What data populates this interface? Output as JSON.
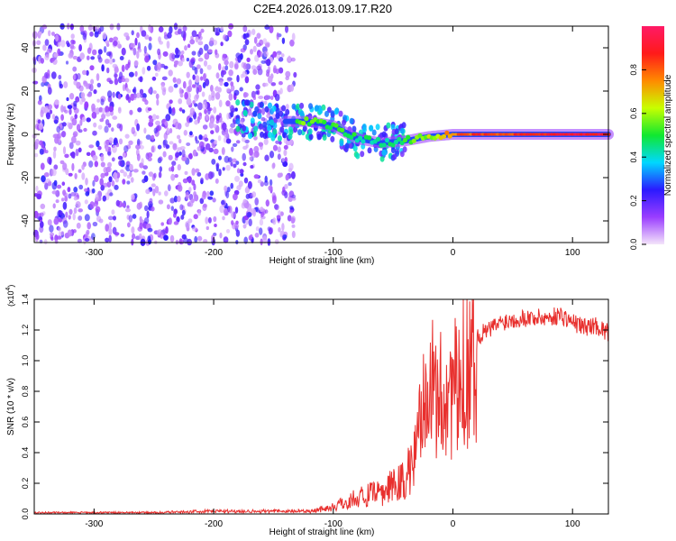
{
  "title": "C2E4.2026.013.09.17.R20",
  "chart_data": [
    {
      "type": "heatmap",
      "title": "",
      "xlabel": "Height of straight line (km)",
      "ylabel": "Frequency (Hz)",
      "xlim": [
        -350,
        130
      ],
      "ylim": [
        -50,
        50
      ],
      "xticks": [
        -300,
        -200,
        -100,
        0,
        100
      ],
      "yticks": [
        -40,
        -20,
        0,
        20,
        40
      ],
      "colorbar": {
        "label": "Normalized spectral amplitude",
        "range": [
          0,
          1
        ],
        "ticks": [
          0.0,
          0.2,
          0.4,
          0.6,
          0.8
        ],
        "colors": [
          "#f4e4fa",
          "#9a3dff",
          "#2b1aff",
          "#00d8ff",
          "#10e830",
          "#c8ff00",
          "#ff8a00",
          "#ff1a1a",
          "#ff1a66"
        ]
      },
      "ridge": {
        "x": [
          -180,
          -150,
          -120,
          -100,
          -80,
          -60,
          -40,
          -20,
          0,
          20,
          60,
          100,
          130
        ],
        "frequency": [
          8,
          6,
          6,
          4,
          -2,
          -4,
          -3,
          -1,
          0,
          0,
          0,
          0,
          0
        ],
        "amplitude": [
          0.35,
          0.45,
          0.55,
          0.5,
          0.45,
          0.45,
          0.5,
          0.6,
          0.75,
          0.85,
          0.85,
          0.9,
          0.9
        ]
      }
    },
    {
      "type": "line",
      "title": "",
      "xlabel": "Height of straight line (km)",
      "ylabel": "SNR (10 * v/v)",
      "yscale_label": "(x10",
      "yscale_exp": "4",
      "yscale_close": ")",
      "xlim": [
        -350,
        130
      ],
      "ylim": [
        0,
        1.4
      ],
      "xticks": [
        -300,
        -200,
        -100,
        0,
        100
      ],
      "yticks": [
        0.0,
        0.2,
        0.4,
        0.6,
        0.8,
        1.0,
        1.2,
        1.4
      ],
      "series": [
        {
          "color": "#e8302e",
          "x": [
            -350,
            -300,
            -250,
            -200,
            -150,
            -120,
            -100,
            -80,
            -60,
            -50,
            -40,
            -30,
            -25,
            -22,
            -20,
            -15,
            -10,
            -5,
            0,
            5,
            10,
            15,
            20,
            25,
            30,
            40,
            50,
            60,
            70,
            80,
            90,
            100,
            110,
            120,
            130
          ],
          "values": [
            0.01,
            0.01,
            0.01,
            0.02,
            0.02,
            0.02,
            0.05,
            0.12,
            0.15,
            0.2,
            0.25,
            0.45,
            0.9,
            1.2,
            0.8,
            0.8,
            0.75,
            0.8,
            0.85,
            0.75,
            0.95,
            1.1,
            1.15,
            1.18,
            1.2,
            1.25,
            1.27,
            1.28,
            1.28,
            1.28,
            1.3,
            1.25,
            1.22,
            1.23,
            1.18
          ]
        }
      ]
    }
  ]
}
